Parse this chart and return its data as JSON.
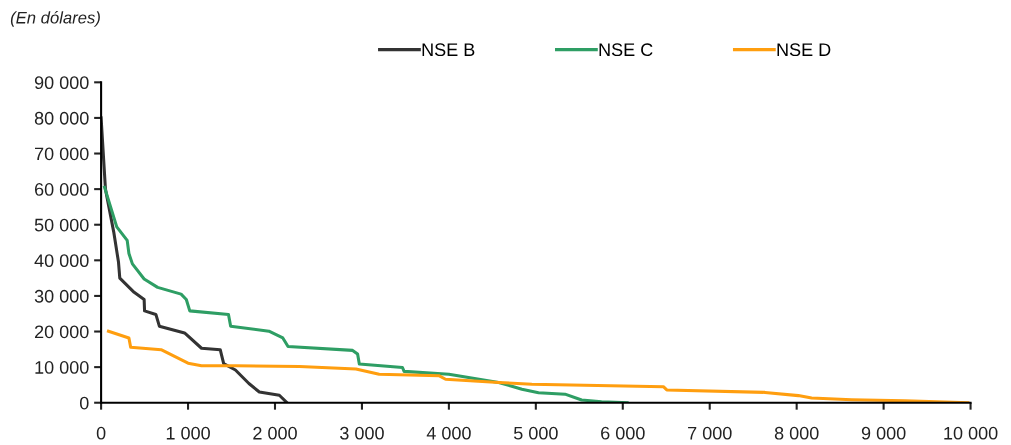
{
  "chart_data": {
    "type": "line",
    "title": "(En dólares)",
    "legend": "top",
    "grid": false,
    "marker": "none",
    "line_style": "solid",
    "xlim": [
      0,
      10000
    ],
    "ylim": [
      0,
      90000
    ],
    "xticks": [
      0,
      {
        "value": 1000,
        "label": "1 000"
      },
      {
        "value": 2000,
        "label": "2 000"
      },
      {
        "value": 3000,
        "label": "3 000"
      },
      {
        "value": 4000,
        "label": "4 000"
      },
      {
        "value": 5000,
        "label": "5 000"
      },
      {
        "value": 6000,
        "label": "6 000"
      },
      {
        "value": 7000,
        "label": "7 000"
      },
      {
        "value": 8000,
        "label": "8 000"
      },
      {
        "value": 9000,
        "label": "9 000"
      },
      {
        "value": 10000,
        "label": "10 000"
      }
    ],
    "yticks": [
      0,
      {
        "value": 10000,
        "label": "10 000"
      },
      {
        "value": 20000,
        "label": "20 000"
      },
      {
        "value": 30000,
        "label": "30 000"
      },
      {
        "value": 40000,
        "label": "40 000"
      },
      {
        "value": 50000,
        "label": "50 000"
      },
      {
        "value": 60000,
        "label": "60 000"
      },
      {
        "value": 70000,
        "label": "70 000"
      },
      {
        "value": 80000,
        "label": "80 000"
      },
      {
        "value": 90000,
        "label": "90 000"
      }
    ],
    "series": [
      {
        "name": "NSE B",
        "color": "#333333",
        "x": [
          0,
          50,
          145,
          200,
          215,
          380,
          495,
          500,
          630,
          670,
          960,
          1155,
          1370,
          1410,
          1545,
          1700,
          1820,
          2050,
          2130
        ],
        "values": [
          80000,
          60000,
          48000,
          39500,
          35000,
          31000,
          29000,
          25800,
          24800,
          21500,
          19600,
          15300,
          14900,
          11000,
          9200,
          5400,
          3000,
          2100,
          200
        ]
      },
      {
        "name": "NSE C",
        "color": "#2e9e64",
        "x": [
          40,
          180,
          300,
          320,
          360,
          495,
          650,
          920,
          980,
          1020,
          1465,
          1490,
          1930,
          2090,
          2150,
          2893,
          2950,
          2970,
          3466,
          3485,
          4000,
          4573,
          4840,
          5031,
          5336,
          5527,
          5756,
          6050
        ],
        "values": [
          60500,
          49400,
          45600,
          41900,
          39000,
          34750,
          32400,
          30500,
          29000,
          25800,
          24800,
          21500,
          20100,
          18200,
          15800,
          14700,
          13700,
          10900,
          9900,
          8800,
          8000,
          5700,
          3800,
          2800,
          2400,
          760,
          300,
          0
        ]
      },
      {
        "name": "NSE D",
        "color": "#ff9e0f",
        "x": [
          85,
          320,
          340,
          690,
          845,
          1000,
          1155,
          1545,
          2282,
          2931,
          3198,
          3885,
          3962,
          4573,
          4954,
          6467,
          6506,
          7636,
          8019,
          8172,
          8632,
          9245,
          9969
        ],
        "values": [
          20100,
          18200,
          15600,
          14900,
          13000,
          11100,
          10400,
          10400,
          10200,
          9500,
          8000,
          7600,
          6600,
          5700,
          5200,
          4500,
          3600,
          2900,
          2000,
          1300,
          850,
          570,
          0
        ]
      }
    ]
  }
}
